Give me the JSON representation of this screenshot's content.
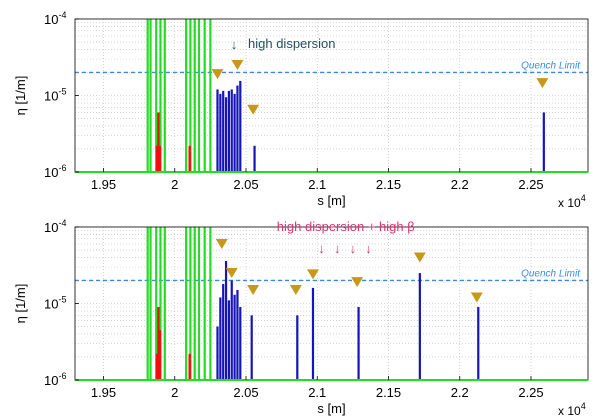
{
  "chart_data": [
    {
      "type": "bar",
      "panel": "top",
      "xlabel": "s [m]",
      "ylabel": "η [1/m]",
      "xlim": [
        1.93,
        2.29
      ],
      "ylim": [
        1e-06,
        0.0001
      ],
      "yscale": "log",
      "grid": true,
      "x_multiplier": "x 10",
      "x_multiplier_exp": "4",
      "x_ticks": [
        "1.95",
        "2",
        "2.05",
        "2.1",
        "2.15",
        "2.2",
        "2.25"
      ],
      "x_tick_values": [
        1.95,
        2.0,
        2.05,
        2.1,
        2.15,
        2.2,
        2.25
      ],
      "y_ticks": [
        {
          "base": "10",
          "exp": "-6",
          "value": 1e-06
        },
        {
          "base": "10",
          "exp": "-5",
          "value": 1e-05
        },
        {
          "base": "10",
          "exp": "-4",
          "value": 0.0001
        }
      ],
      "quench_limit": {
        "label": "Quench Limit",
        "value": 2e-05,
        "color": "#3a8be0"
      },
      "annotation": {
        "text": "high dispersion",
        "arrow": "↓",
        "x": 2.043,
        "color": "#1f4f60"
      },
      "series": [
        {
          "color": "#22dd22",
          "points": [
            [
              1.981,
              0.0001
            ],
            [
              1.983,
              0.0001
            ],
            [
              1.987,
              0.0001
            ],
            [
              1.99,
              0.0001
            ],
            [
              1.993,
              0.0001
            ],
            [
              2.008,
              0.0001
            ],
            [
              2.011,
              0.0001
            ],
            [
              2.014,
              0.0001
            ],
            [
              2.017,
              0.0001
            ],
            [
              2.021,
              0.0001
            ],
            [
              2.025,
              0.0001
            ]
          ]
        },
        {
          "color": "#ee1111",
          "points": [
            [
              1.9875,
              2.2e-06
            ],
            [
              1.9885,
              6e-06
            ],
            [
              1.9895,
              2.2e-06
            ],
            [
              2.0105,
              2.2e-06
            ]
          ]
        },
        {
          "color": "#1515bb",
          "points": [
            [
              2.03,
              1.2e-05
            ],
            [
              2.032,
              1.05e-05
            ],
            [
              2.034,
              1.15e-05
            ],
            [
              2.036,
              9.5e-06
            ],
            [
              2.038,
              1.15e-05
            ],
            [
              2.04,
              1.2e-05
            ],
            [
              2.042,
              1.05e-05
            ],
            [
              2.044,
              1.35e-05
            ],
            [
              2.046,
              1.55e-05
            ],
            [
              2.056,
              2.2e-06
            ],
            [
              2.259,
              6e-06
            ]
          ]
        }
      ],
      "markers": [
        [
          2.03,
          1.9e-05
        ],
        [
          2.044,
          2.5e-05
        ],
        [
          2.055,
          6.5e-06
        ],
        [
          2.258,
          1.45e-05
        ]
      ]
    },
    {
      "type": "bar",
      "panel": "bottom",
      "xlabel": "s [m]",
      "ylabel": "η [1/m]",
      "xlim": [
        1.93,
        2.29
      ],
      "ylim": [
        1e-06,
        0.0001
      ],
      "yscale": "log",
      "grid": true,
      "x_multiplier": "x 10",
      "x_multiplier_exp": "4",
      "x_ticks": [
        "1.95",
        "2",
        "2.05",
        "2.1",
        "2.15",
        "2.2",
        "2.25"
      ],
      "x_tick_values": [
        1.95,
        2.0,
        2.05,
        2.1,
        2.15,
        2.2,
        2.25
      ],
      "y_ticks": [
        {
          "base": "10",
          "exp": "-6",
          "value": 1e-06
        },
        {
          "base": "10",
          "exp": "-5",
          "value": 1e-05
        },
        {
          "base": "10",
          "exp": "-4",
          "value": 0.0001
        }
      ],
      "quench_limit": {
        "label": "Quench Limit",
        "value": 2e-05,
        "color": "#3a8be0"
      },
      "annotation": {
        "text": "high dispersion + high β",
        "arrows": [
          "↓",
          "↓",
          "↓",
          "↓"
        ],
        "arrow_x": [
          2.103,
          2.114,
          2.125,
          2.136
        ],
        "color": "#dd3377"
      },
      "series": [
        {
          "color": "#22dd22",
          "points": [
            [
              1.981,
              0.0001
            ],
            [
              1.983,
              0.0001
            ],
            [
              1.987,
              0.0001
            ],
            [
              1.99,
              0.0001
            ],
            [
              1.993,
              0.0001
            ],
            [
              2.008,
              0.0001
            ],
            [
              2.011,
              0.0001
            ],
            [
              2.014,
              0.0001
            ],
            [
              2.017,
              0.0001
            ],
            [
              2.021,
              0.0001
            ],
            [
              2.025,
              0.0001
            ]
          ]
        },
        {
          "color": "#ee1111",
          "points": [
            [
              1.9875,
              2.2e-06
            ],
            [
              1.9885,
              9e-06
            ],
            [
              1.9895,
              4.5e-06
            ],
            [
              2.0105,
              2.2e-06
            ]
          ]
        },
        {
          "color": "#1515bb",
          "points": [
            [
              2.03,
              5e-06
            ],
            [
              2.032,
              1.2e-05
            ],
            [
              2.034,
              1.8e-05
            ],
            [
              2.036,
              3.6e-05
            ],
            [
              2.038,
              1.1e-05
            ],
            [
              2.04,
              2e-05
            ],
            [
              2.042,
              1.3e-05
            ],
            [
              2.044,
              1.5e-05
            ],
            [
              2.046,
              9e-06
            ],
            [
              2.054,
              7e-06
            ],
            [
              2.086,
              7e-06
            ],
            [
              2.097,
              1.6e-05
            ],
            [
              2.129,
              9e-06
            ],
            [
              2.172,
              2.5e-05
            ],
            [
              2.213,
              9e-06
            ]
          ]
        }
      ],
      "markers": [
        [
          2.033,
          6e-05
        ],
        [
          2.04,
          2.5e-05
        ],
        [
          2.055,
          1.5e-05
        ],
        [
          2.085,
          1.5e-05
        ],
        [
          2.097,
          2.4e-05
        ],
        [
          2.128,
          1.9e-05
        ],
        [
          2.172,
          4e-05
        ],
        [
          2.212,
          1.2e-05
        ]
      ]
    }
  ]
}
